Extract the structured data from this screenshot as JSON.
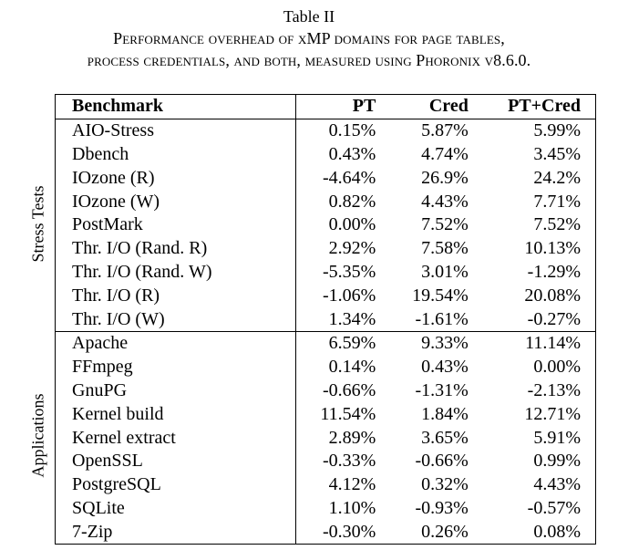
{
  "caption": {
    "number": "Table II",
    "line1": "Performance overhead of xMP domains for page tables,",
    "line2": "process credentials, and both, measured using Phoronix v8.6.0."
  },
  "headers": {
    "benchmark": "Benchmark",
    "pt": "PT",
    "cred": "Cred",
    "ptcred": "PT+Cred"
  },
  "groups": [
    {
      "label": "Stress Tests",
      "rows": [
        {
          "name": "AIO-Stress",
          "pt": "0.15%",
          "cred": "5.87%",
          "ptcred": "5.99%"
        },
        {
          "name": "Dbench",
          "pt": "0.43%",
          "cred": "4.74%",
          "ptcred": "3.45%"
        },
        {
          "name": "IOzone (R)",
          "pt": "-4.64%",
          "cred": "26.9%",
          "ptcred": "24.2%"
        },
        {
          "name": "IOzone (W)",
          "pt": "0.82%",
          "cred": "4.43%",
          "ptcred": "7.71%"
        },
        {
          "name": "PostMark",
          "pt": "0.00%",
          "cred": "7.52%",
          "ptcred": "7.52%"
        },
        {
          "name": "Thr. I/O (Rand. R)",
          "pt": "2.92%",
          "cred": "7.58%",
          "ptcred": "10.13%"
        },
        {
          "name": "Thr. I/O (Rand. W)",
          "pt": "-5.35%",
          "cred": "3.01%",
          "ptcred": "-1.29%"
        },
        {
          "name": "Thr. I/O (R)",
          "pt": "-1.06%",
          "cred": "19.54%",
          "ptcred": "20.08%"
        },
        {
          "name": "Thr. I/O (W)",
          "pt": "1.34%",
          "cred": "-1.61%",
          "ptcred": "-0.27%"
        }
      ]
    },
    {
      "label": "Applications",
      "rows": [
        {
          "name": "Apache",
          "pt": "6.59%",
          "cred": "9.33%",
          "ptcred": "11.14%"
        },
        {
          "name": "FFmpeg",
          "pt": "0.14%",
          "cred": "0.43%",
          "ptcred": "0.00%"
        },
        {
          "name": "GnuPG",
          "pt": "-0.66%",
          "cred": "-1.31%",
          "ptcred": "-2.13%"
        },
        {
          "name": "Kernel build",
          "pt": "11.54%",
          "cred": "1.84%",
          "ptcred": "12.71%"
        },
        {
          "name": "Kernel extract",
          "pt": "2.89%",
          "cred": "3.65%",
          "ptcred": "5.91%"
        },
        {
          "name": "OpenSSL",
          "pt": "-0.33%",
          "cred": "-0.66%",
          "ptcred": "0.99%"
        },
        {
          "name": "PostgreSQL",
          "pt": "4.12%",
          "cred": "0.32%",
          "ptcred": "4.43%"
        },
        {
          "name": "SQLite",
          "pt": "1.10%",
          "cred": "-0.93%",
          "ptcred": "-0.57%"
        },
        {
          "name": "7-Zip",
          "pt": "-0.30%",
          "cred": "0.26%",
          "ptcred": "0.08%"
        }
      ]
    }
  ]
}
